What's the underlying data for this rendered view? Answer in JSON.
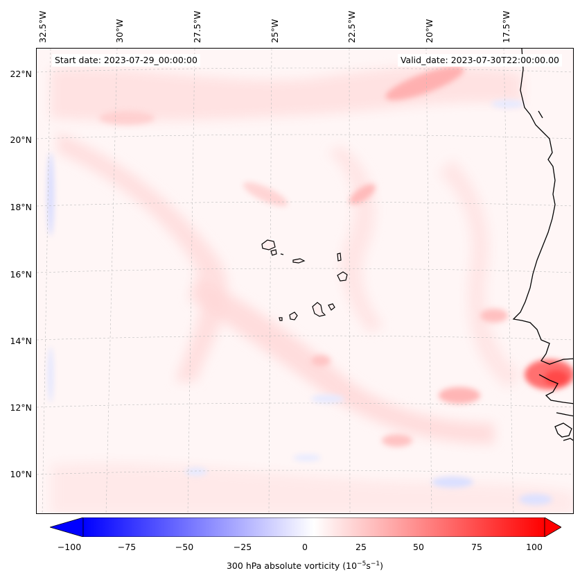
{
  "map": {
    "projection": "lambert-conformal",
    "extent": {
      "lon_min": -33,
      "lon_max": -16,
      "lat_min": 9,
      "lat_max": 22.7
    },
    "lon_labels": [
      "32.5°W",
      "30°W",
      "27.5°W",
      "25°W",
      "22.5°W",
      "20°W",
      "17.5°W"
    ],
    "lat_labels": [
      "22°N",
      "20°N",
      "18°N",
      "16°N",
      "14°N",
      "12°N",
      "10°N"
    ],
    "start_date_text": "Start date: 2023-07-29_00:00:00",
    "valid_date_text": "Valid_date: 2023-07-30T22:00:00.00",
    "gridlines": true,
    "coastline_color": "#000000"
  },
  "field": {
    "variable": "300 hPa absolute vorticity",
    "units": "10^-5 s^-1",
    "colormap": "bwr",
    "vmin": -100,
    "vmax": 100,
    "extend": "both"
  },
  "colorbar": {
    "ticks": [
      "−100",
      "−75",
      "−50",
      "−25",
      "0",
      "25",
      "50",
      "75",
      "100"
    ],
    "label_prefix": "300 hPa absolute vorticity (10",
    "label_exp1": "−5",
    "label_mid": "s",
    "label_exp2": "−1",
    "label_suffix": ")",
    "colors": {
      "min": "#0000ff",
      "mid": "#ffffff",
      "max": "#ff0000"
    }
  }
}
